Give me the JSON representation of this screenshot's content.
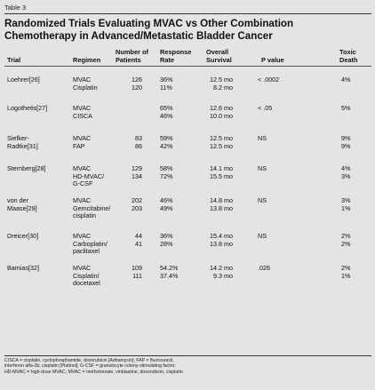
{
  "table_label": "Table 3",
  "title_lines": [
    "Randomized Trials Evaluating MVAC vs Other Combination",
    "Chemotherapy in Advanced/Metastatic Bladder Cancer"
  ],
  "headers": {
    "trial": "Trial",
    "regimen": "Regimen",
    "patients": [
      "Number of",
      "Patients"
    ],
    "response": [
      "Response",
      "Rate"
    ],
    "survival": [
      "Overall",
      "Survival"
    ],
    "pvalue": "P value",
    "toxic": [
      "Toxic",
      "Death"
    ]
  },
  "rows": [
    {
      "trial": [
        "Loehrer[26]"
      ],
      "regimen": [
        "MVAC",
        "Cisplatin"
      ],
      "patients": [
        "126",
        "120"
      ],
      "response": [
        "36%",
        "11%"
      ],
      "survival": [
        "12.5 mo",
        "8.2 mo"
      ],
      "pvalue": "< .0002",
      "toxic": [
        "4%",
        ""
      ]
    },
    {
      "trial": [
        "Logothetis[27]"
      ],
      "regimen": [
        "MVAC",
        "CISCA"
      ],
      "patients": [
        "",
        ""
      ],
      "response": [
        "65%",
        "46%"
      ],
      "survival": [
        "12.6 mo",
        "10.0 mo"
      ],
      "pvalue": "< .05",
      "toxic": [
        "5%",
        ""
      ]
    },
    {
      "trial": [
        "Siefker-",
        "Radtke[31]"
      ],
      "regimen": [
        "MVAC",
        "FAP"
      ],
      "patients": [
        "83",
        "86"
      ],
      "response": [
        "59%",
        "42%"
      ],
      "survival": [
        "12.5 mo",
        "12.5 mo"
      ],
      "pvalue": "NS",
      "toxic": [
        "9%",
        "9%"
      ]
    },
    {
      "trial": [
        "Sternberg[28]"
      ],
      "regimen": [
        "MVAC",
        "HD-MVAC/",
        "G-CSF"
      ],
      "patients": [
        "129",
        "134"
      ],
      "response": [
        "58%",
        "72%"
      ],
      "survival": [
        "14.1 mo",
        "15.5 mo"
      ],
      "pvalue": "NS",
      "toxic": [
        "4%",
        "3%"
      ]
    },
    {
      "trial": [
        "von der",
        "Maase[29]"
      ],
      "regimen": [
        "MVAC",
        "Gemcitabine/",
        "cisplatin"
      ],
      "patients": [
        "202",
        "203"
      ],
      "response": [
        "46%",
        "49%"
      ],
      "survival": [
        "14.8 mo",
        "13.8 mo"
      ],
      "pvalue": "NS",
      "toxic": [
        "3%",
        "1%"
      ]
    },
    {
      "trial": [
        "Dreicer[30]"
      ],
      "regimen": [
        "MVAC",
        "Carboplatin/",
        "paclitaxel"
      ],
      "patients": [
        "44",
        "41"
      ],
      "response": [
        "36%",
        "28%"
      ],
      "survival": [
        "15.4 mo",
        "13.8 mo"
      ],
      "pvalue": "NS",
      "toxic": [
        "2%",
        "2%"
      ]
    },
    {
      "trial": [
        "Bamias[32]"
      ],
      "regimen": [
        "MVAC",
        "Cisplatin/",
        "docetaxel"
      ],
      "patients": [
        "109",
        "111"
      ],
      "response": [
        "54.2%",
        "37.4%"
      ],
      "survival": [
        "14.2 mo",
        "9.3 mo"
      ],
      "pvalue": ".026",
      "toxic": [
        "2%",
        "1%"
      ]
    }
  ],
  "footnote_lines": [
    "CISCA = cisplatin, cyclophosphamide, doxorubicin [Adriamycin]; FAP = fluorouracil,",
    "interferon alfa-2b, cisplatin [Platinol]; G-CSF = granulocyte colony-stimulating factor;",
    "HD-MVAC = high-dose MVAC; MVAC = methotrexate, vinblastine, doxorubicin, cisplatin."
  ]
}
